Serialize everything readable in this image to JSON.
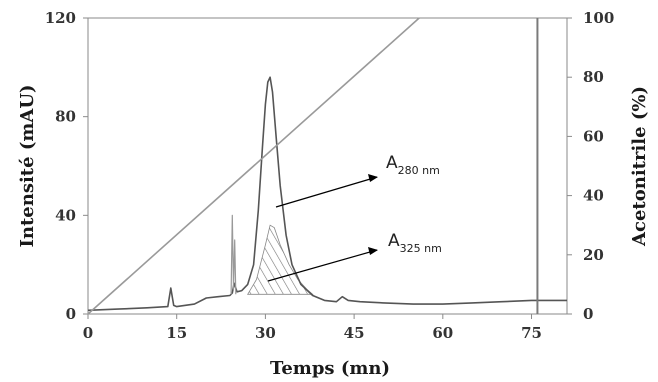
{
  "chart_data": {
    "type": "line",
    "xlabel": "Temps (mn)",
    "ylabel": "Intensité (mAU)",
    "y2label": "Acetonitrile (%)",
    "xlim": [
      0,
      81
    ],
    "ylim": [
      0,
      120
    ],
    "y2lim": [
      0,
      100
    ],
    "x_ticks": [
      0,
      15,
      30,
      45,
      60,
      75
    ],
    "y_ticks": [
      0,
      40,
      80,
      120
    ],
    "y2_ticks": [
      0,
      20,
      40,
      60,
      80,
      100
    ],
    "grid": false,
    "series": [
      {
        "axis": "left",
        "color": "#555555",
        "x": [
          0,
          5,
          10,
          13.5,
          14,
          14.5,
          15,
          18,
          20,
          22,
          24,
          24.4,
          24.7,
          25.2,
          26,
          27,
          28,
          28.8,
          29.5,
          30,
          30.4,
          30.8,
          31.2,
          31.8,
          32.5,
          33.5,
          34.5,
          36,
          38,
          40,
          42,
          43,
          44,
          46,
          50,
          55,
          60,
          65,
          70,
          75,
          78,
          81
        ],
        "values": [
          1.5,
          2.0,
          2.5,
          3.0,
          10.5,
          3.5,
          3.0,
          4.0,
          6.5,
          7.0,
          7.5,
          8.5,
          12.5,
          9.0,
          9.5,
          12.0,
          20.0,
          42.0,
          68.0,
          85.0,
          94.0,
          96.0,
          90.0,
          72.0,
          52.0,
          32.0,
          20.0,
          12.0,
          7.5,
          5.5,
          5.0,
          7.0,
          5.5,
          5.0,
          4.5,
          4.0,
          4.0,
          4.5,
          5.0,
          5.5,
          5.5,
          5.5
        ]
      },
      {
        "axis": "left",
        "color": "#999999",
        "x": [
          24.2,
          24.4,
          24.6,
          24.8,
          25.0
        ],
        "values": [
          8,
          40,
          10,
          30,
          8
        ]
      },
      {
        "axis": "right",
        "color": "#9a9a9a",
        "x": [
          0,
          56
        ],
        "values": [
          0,
          100
        ]
      }
    ],
    "shaded_peak": {
      "x": [
        27,
        28.5,
        30,
        30.8,
        31.5,
        32.5,
        34,
        35.5,
        37,
        38
      ],
      "values": [
        8,
        14,
        28,
        36,
        35,
        28,
        20,
        14,
        10,
        8
      ]
    },
    "vertical_line_x": 76,
    "annotations": [
      {
        "text": "A",
        "sub": "280 nm"
      },
      {
        "text": "A",
        "sub": "325 nm"
      }
    ]
  }
}
